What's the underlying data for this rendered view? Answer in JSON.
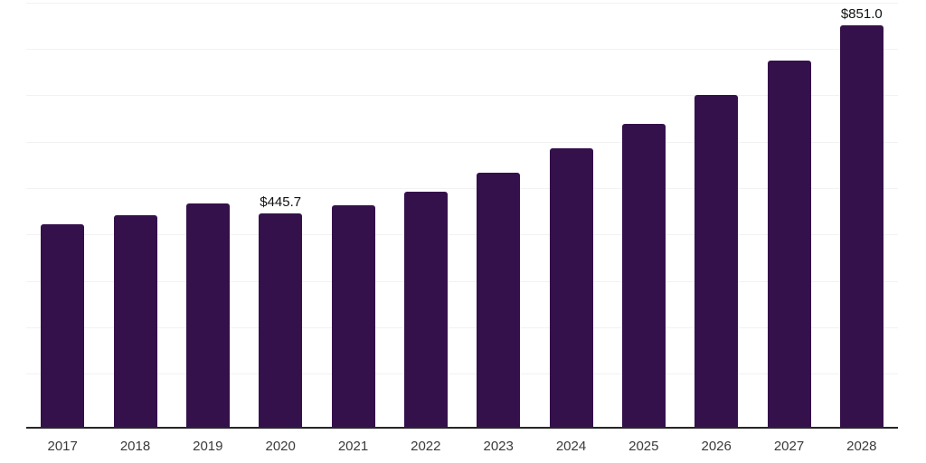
{
  "chart_data": {
    "type": "bar",
    "title": "",
    "xlabel": "",
    "ylabel": "",
    "categories": [
      "2017",
      "2018",
      "2019",
      "2020",
      "2021",
      "2022",
      "2023",
      "2024",
      "2025",
      "2026",
      "2027",
      "2028"
    ],
    "values": [
      422,
      442,
      466,
      445.7,
      463,
      493,
      534,
      585,
      638,
      701,
      774,
      851
    ],
    "point_labels": [
      "",
      "",
      "",
      "$445.7",
      "",
      "",
      "",
      "",
      "",
      "",
      "",
      "$851.0"
    ],
    "ylim": [
      0,
      905
    ],
    "gridline_step": 100,
    "grid": true,
    "legend": false,
    "colors": {
      "bar": "#35114b",
      "axis_line": "#262626",
      "gridline": "#f2f2f2",
      "tick_label": "#3a3a3a",
      "data_label": "#111111",
      "background": "#ffffff"
    }
  }
}
